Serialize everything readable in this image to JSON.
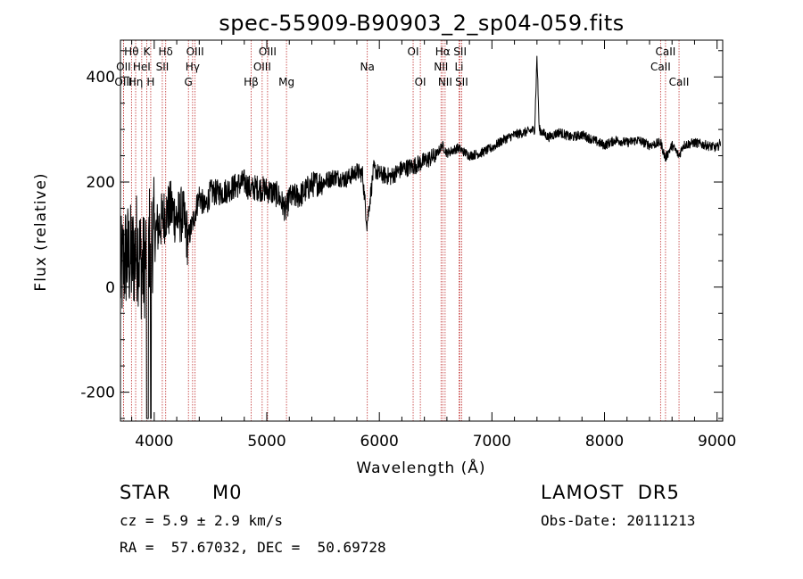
{
  "header": {
    "title": "spec-55909-B90903_2_sp04-059.fits"
  },
  "info": {
    "object_class": "STAR",
    "subclass": "M0",
    "release": "LAMOST  DR5",
    "redshift": "cz = 5.9 ± 2.9 km/s",
    "obs_date": "Obs-Date: 20111213",
    "coords": "RA =  57.67032, DEC =  50.69728"
  },
  "colors": {
    "line_marker": "#c03030",
    "spectrum": "#000000",
    "axes": "#000000"
  },
  "chart_data": {
    "type": "line",
    "title": "spec-55909-B90903_2_sp04-059.fits",
    "xlabel": "Wavelength (Å)",
    "ylabel": "Flux (relative)",
    "xlim": [
      3700,
      9050
    ],
    "ylim": [
      -255,
      470
    ],
    "xticks": [
      4000,
      5000,
      6000,
      7000,
      8000,
      9000
    ],
    "yticks": [
      -200,
      0,
      200,
      400
    ],
    "grid": false,
    "spectrum": {
      "name": "Flux",
      "x": [
        3700,
        3750,
        3800,
        3850,
        3900,
        3950,
        4000,
        4050,
        4100,
        4150,
        4200,
        4250,
        4300,
        4350,
        4400,
        4450,
        4500,
        4600,
        4700,
        4800,
        4860,
        4900,
        5000,
        5100,
        5170,
        5200,
        5300,
        5400,
        5500,
        5600,
        5700,
        5800,
        5850,
        5890,
        5950,
        6000,
        6100,
        6200,
        6300,
        6400,
        6500,
        6560,
        6600,
        6700,
        6800,
        6900,
        7000,
        7100,
        7200,
        7300,
        7380,
        7400,
        7420,
        7500,
        7600,
        7700,
        7800,
        7900,
        8000,
        8100,
        8200,
        8300,
        8400,
        8500,
        8540,
        8600,
        8662,
        8700,
        8800,
        8900,
        9000,
        9030
      ],
      "y": [
        20,
        60,
        50,
        80,
        30,
        90,
        100,
        120,
        140,
        150,
        130,
        140,
        90,
        130,
        175,
        150,
        180,
        180,
        190,
        200,
        185,
        190,
        185,
        175,
        145,
        170,
        175,
        195,
        200,
        210,
        205,
        220,
        215,
        120,
        225,
        215,
        210,
        225,
        230,
        240,
        250,
        270,
        255,
        265,
        250,
        255,
        265,
        280,
        290,
        295,
        300,
        440,
        300,
        285,
        295,
        285,
        290,
        280,
        270,
        280,
        275,
        280,
        270,
        275,
        245,
        270,
        250,
        270,
        275,
        270,
        265,
        275
      ]
    },
    "line_markers": [
      {
        "label": "Hθ",
        "wavelength": 3798,
        "row": 0
      },
      {
        "label": "OII",
        "wavelength": 3727,
        "row": 1
      },
      {
        "label": "OIII",
        "wavelength": 3727,
        "row": 2
      },
      {
        "label": "K",
        "wavelength": 3934,
        "row": 0
      },
      {
        "label": "HeI",
        "wavelength": 3889,
        "row": 1
      },
      {
        "label": "Hη",
        "wavelength": 3835,
        "row": 2
      },
      {
        "label": "H",
        "wavelength": 3969,
        "row": 2
      },
      {
        "label": "Hδ",
        "wavelength": 4102,
        "row": 0
      },
      {
        "label": "SII",
        "wavelength": 4072,
        "row": 1
      },
      {
        "label": "OIII",
        "wavelength": 4363,
        "row": 0
      },
      {
        "label": "Hγ",
        "wavelength": 4341,
        "row": 1
      },
      {
        "label": "G",
        "wavelength": 4304,
        "row": 2
      },
      {
        "label": "Hβ",
        "wavelength": 4861,
        "row": 2
      },
      {
        "label": "OIII",
        "wavelength": 5007,
        "row": 0
      },
      {
        "label": "OIII",
        "wavelength": 4959,
        "row": 1
      },
      {
        "label": "Mg",
        "wavelength": 5175,
        "row": 2
      },
      {
        "label": "Na",
        "wavelength": 5893,
        "row": 1
      },
      {
        "label": "OI",
        "wavelength": 6300,
        "row": 0
      },
      {
        "label": "OI",
        "wavelength": 6364,
        "row": 2
      },
      {
        "label": "Hα",
        "wavelength": 6563,
        "row": 0
      },
      {
        "label": "NII",
        "wavelength": 6548,
        "row": 1
      },
      {
        "label": "NII",
        "wavelength": 6584,
        "row": 2
      },
      {
        "label": "SII",
        "wavelength": 6717,
        "row": 0
      },
      {
        "label": "Li",
        "wavelength": 6708,
        "row": 1
      },
      {
        "label": "SII",
        "wavelength": 6731,
        "row": 2
      },
      {
        "label": "CaII",
        "wavelength": 8542,
        "row": 0
      },
      {
        "label": "CaII",
        "wavelength": 8498,
        "row": 1
      },
      {
        "label": "CaII",
        "wavelength": 8662,
        "row": 2
      }
    ]
  }
}
